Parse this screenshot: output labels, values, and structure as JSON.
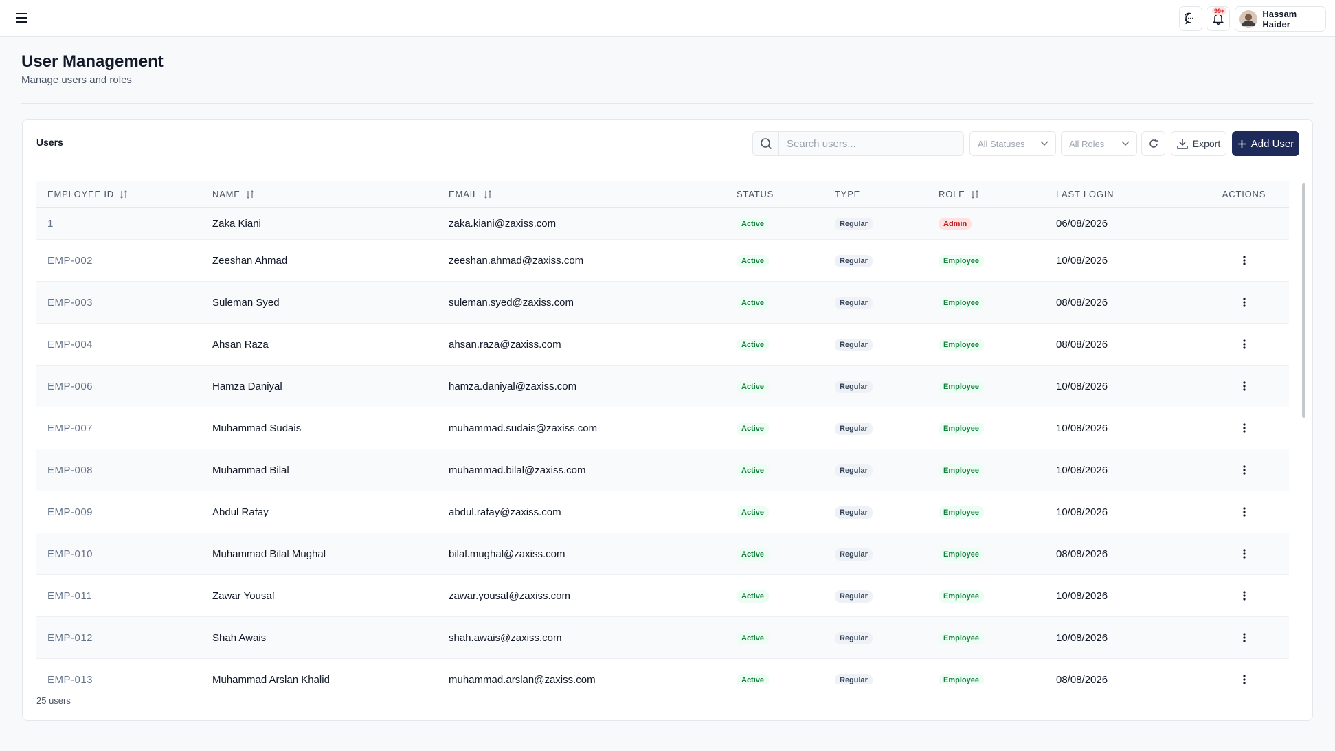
{
  "header": {
    "user_name": "Hassam Haider",
    "notification_badge": "99+"
  },
  "page": {
    "title": "User Management",
    "subtitle": "Manage users and roles"
  },
  "card": {
    "title": "Users",
    "search_placeholder": "Search users...",
    "status_filter": "All Statuses",
    "role_filter": "All Roles",
    "export": "Export",
    "add_user": "Add User",
    "footer": "25 users"
  },
  "table": {
    "columns": [
      {
        "label": "EMPLOYEE ID",
        "sortable": true
      },
      {
        "label": "NAME",
        "sortable": true
      },
      {
        "label": "EMAIL",
        "sortable": true
      },
      {
        "label": "STATUS",
        "sortable": false
      },
      {
        "label": "TYPE",
        "sortable": false
      },
      {
        "label": "ROLE",
        "sortable": true
      },
      {
        "label": "LAST LOGIN",
        "sortable": false
      },
      {
        "label": "ACTIONS",
        "sortable": false
      }
    ],
    "rows": [
      [
        "1",
        "Zaka Kiani",
        "zaka.kiani@zaxiss.com",
        "Active",
        "Regular",
        "Admin",
        "06/08/2026"
      ],
      [
        "EMP-002",
        "Zeeshan Ahmad",
        "zeeshan.ahmad@zaxiss.com",
        "Active",
        "Regular",
        "Employee",
        "10/08/2026"
      ],
      [
        "EMP-003",
        "Suleman Syed",
        "suleman.syed@zaxiss.com",
        "Active",
        "Regular",
        "Employee",
        "08/08/2026"
      ],
      [
        "EMP-004",
        "Ahsan Raza",
        "ahsan.raza@zaxiss.com",
        "Active",
        "Regular",
        "Employee",
        "08/08/2026"
      ],
      [
        "EMP-006",
        "Hamza Daniyal",
        "hamza.daniyal@zaxiss.com",
        "Active",
        "Regular",
        "Employee",
        "10/08/2026"
      ],
      [
        "EMP-007",
        "Muhammad Sudais",
        "muhammad.sudais@zaxiss.com",
        "Active",
        "Regular",
        "Employee",
        "10/08/2026"
      ],
      [
        "EMP-008",
        "Muhammad Bilal",
        "muhammad.bilal@zaxiss.com",
        "Active",
        "Regular",
        "Employee",
        "10/08/2026"
      ],
      [
        "EMP-009",
        "Abdul Rafay",
        "abdul.rafay@zaxiss.com",
        "Active",
        "Regular",
        "Employee",
        "10/08/2026"
      ],
      [
        "EMP-010",
        "Muhammad Bilal Mughal",
        "bilal.mughal@zaxiss.com",
        "Active",
        "Regular",
        "Employee",
        "08/08/2026"
      ],
      [
        "EMP-011",
        "Zawar Yousaf",
        "zawar.yousaf@zaxiss.com",
        "Active",
        "Regular",
        "Employee",
        "10/08/2026"
      ],
      [
        "EMP-012",
        "Shah Awais",
        "shah.awais@zaxiss.com",
        "Active",
        "Regular",
        "Employee",
        "10/08/2026"
      ],
      [
        "EMP-013",
        "Muhammad Arslan Khalid",
        "muhammad.arslan@zaxiss.com",
        "Active",
        "Regular",
        "Employee",
        "08/08/2026"
      ]
    ]
  }
}
